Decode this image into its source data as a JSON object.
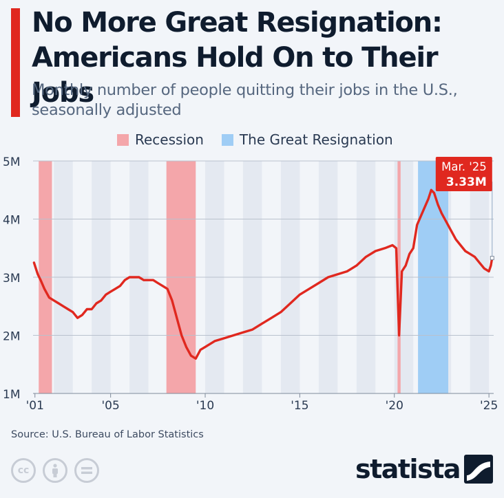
{
  "title": "No More Great Resignation: Americans Hold On to Their Jobs",
  "subtitle": "Monthly number of people quitting their jobs in the U.S., seasonally adjusted",
  "legend": {
    "recession": "Recession",
    "great_resignation": "The Great Resignation"
  },
  "source": "Source: U.S. Bureau of Labor Statistics",
  "brand": "statista",
  "icons": {
    "cc": "cc-icon",
    "attribution": "attribution-icon",
    "no_derivatives": "no-derivatives-icon"
  },
  "colors": {
    "line": "#e0281f",
    "recession": "#f4a6aa",
    "great_resignation": "#9fcdf5",
    "accent": "#e0281f",
    "band": "#e4e9f1"
  },
  "chart_data": {
    "type": "line",
    "title": "No More Great Resignation: Americans Hold On to Their Jobs",
    "ylabel": "",
    "xlabel": "",
    "ylim": [
      1,
      5
    ],
    "xlim": [
      2000.9,
      2025.25
    ],
    "y_ticks": [
      1,
      2,
      3,
      4,
      5
    ],
    "y_tick_labels": [
      "1M",
      "2M",
      "3M",
      "4M",
      "5M"
    ],
    "x_ticks": [
      2001,
      2005,
      2010,
      2015,
      2020,
      2025
    ],
    "x_tick_labels": [
      "'01",
      "'05",
      "'10",
      "'15",
      "'20",
      "'25"
    ],
    "units": "millions",
    "recessions": [
      [
        2001.2,
        2001.9
      ],
      [
        2007.95,
        2009.5
      ],
      [
        2020.17,
        2020.33
      ]
    ],
    "great_resignation": [
      2021.25,
      2022.85
    ],
    "series": [
      {
        "name": "Quits",
        "x": [
          2000.95,
          2001.05,
          2001.15,
          2001.3,
          2001.5,
          2001.75,
          2002.0,
          2002.25,
          2002.5,
          2002.75,
          2003.0,
          2003.25,
          2003.5,
          2003.75,
          2004.0,
          2004.25,
          2004.5,
          2004.75,
          2005.0,
          2005.25,
          2005.5,
          2005.75,
          2006.0,
          2006.25,
          2006.5,
          2006.75,
          2007.0,
          2007.25,
          2007.5,
          2007.75,
          2008.0,
          2008.25,
          2008.5,
          2008.75,
          2009.0,
          2009.25,
          2009.5,
          2009.75,
          2010.0,
          2010.5,
          2011.0,
          2011.5,
          2012.0,
          2012.5,
          2013.0,
          2013.5,
          2014.0,
          2014.5,
          2015.0,
          2015.5,
          2016.0,
          2016.5,
          2017.0,
          2017.5,
          2018.0,
          2018.5,
          2019.0,
          2019.5,
          2019.9,
          2020.1,
          2020.25,
          2020.4,
          2020.6,
          2020.8,
          2021.0,
          2021.2,
          2021.4,
          2021.6,
          2021.8,
          2021.95,
          2022.1,
          2022.3,
          2022.5,
          2022.75,
          2023.0,
          2023.25,
          2023.5,
          2023.75,
          2024.0,
          2024.25,
          2024.5,
          2024.75,
          2025.0,
          2025.1,
          2025.17
        ],
        "values": [
          3.25,
          3.15,
          3.05,
          2.95,
          2.8,
          2.65,
          2.6,
          2.55,
          2.5,
          2.45,
          2.4,
          2.3,
          2.35,
          2.45,
          2.45,
          2.55,
          2.6,
          2.7,
          2.75,
          2.8,
          2.85,
          2.95,
          3.0,
          3.0,
          3.0,
          2.95,
          2.95,
          2.95,
          2.9,
          2.85,
          2.8,
          2.6,
          2.3,
          2.0,
          1.8,
          1.65,
          1.6,
          1.75,
          1.8,
          1.9,
          1.95,
          2.0,
          2.05,
          2.1,
          2.2,
          2.3,
          2.4,
          2.55,
          2.7,
          2.8,
          2.9,
          3.0,
          3.05,
          3.1,
          3.2,
          3.35,
          3.45,
          3.5,
          3.55,
          3.5,
          2.0,
          3.1,
          3.2,
          3.4,
          3.5,
          3.9,
          4.05,
          4.2,
          4.35,
          4.5,
          4.45,
          4.25,
          4.1,
          3.95,
          3.8,
          3.65,
          3.55,
          3.45,
          3.4,
          3.35,
          3.25,
          3.15,
          3.1,
          3.2,
          3.33
        ]
      }
    ],
    "annotation": {
      "label": "Mar. '25",
      "value_label": "3.33M",
      "x": 2025.17,
      "y": 3.33
    }
  }
}
